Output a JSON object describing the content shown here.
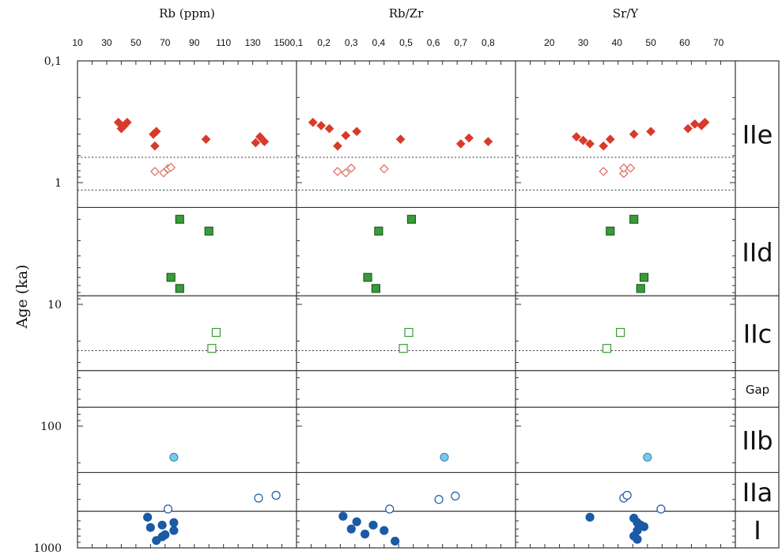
{
  "chart_data": {
    "type": "scatter",
    "y_title": "Age (ka)",
    "y_scale": "log",
    "y_reversed": true,
    "y_range": [
      0.1,
      1000
    ],
    "y_tick_labels": [
      "0,1",
      "1",
      "10",
      "100",
      "1000"
    ],
    "grid": false,
    "panels": [
      {
        "title": "Rb (ppm)",
        "x_range": [
          10,
          160
        ],
        "x_tick_labels": [
          "10",
          "30",
          "50",
          "70",
          "90",
          "110",
          "130",
          "150"
        ],
        "series": [
          {
            "marker": "diamond",
            "filled": true,
            "color": "#d93a2a",
            "points": [
              [
                38,
                0.32
              ],
              [
                40,
                0.36
              ],
              [
                42,
                0.34
              ],
              [
                44,
                0.32
              ],
              [
                62,
                0.4
              ],
              [
                64,
                0.38
              ],
              [
                63,
                0.5
              ],
              [
                98,
                0.44
              ],
              [
                132,
                0.47
              ],
              [
                135,
                0.42
              ],
              [
                138,
                0.46
              ]
            ]
          },
          {
            "marker": "diamond",
            "filled": false,
            "color": "#e06a5e",
            "points": [
              [
                63,
                0.81
              ],
              [
                69,
                0.83
              ],
              [
                72,
                0.77
              ],
              [
                74,
                0.75
              ]
            ]
          },
          {
            "marker": "square",
            "filled": true,
            "color": "#3b9a3b",
            "points": [
              [
                80,
                2.0
              ],
              [
                100,
                2.5
              ],
              [
                74,
                6.0
              ],
              [
                80,
                7.4
              ]
            ]
          },
          {
            "marker": "square",
            "filled": false,
            "color": "#3b9a3b",
            "points": [
              [
                105,
                17.0
              ],
              [
                102,
                23.0
              ]
            ]
          },
          {
            "marker": "circle",
            "filled": true,
            "color": "#7cc8ea",
            "points": [
              [
                76,
                180
              ]
            ]
          },
          {
            "marker": "circle",
            "filled": false,
            "color": "#1a5aa6",
            "points": [
              [
                72,
                480
              ],
              [
                134,
                390
              ],
              [
                146,
                370
              ]
            ]
          },
          {
            "marker": "circle",
            "filled": true,
            "color": "#1a5aa6",
            "points": [
              [
                58,
                560
              ],
              [
                60,
                680
              ],
              [
                68,
                650
              ],
              [
                76,
                620
              ],
              [
                76,
                720
              ],
              [
                68,
                810
              ],
              [
                70,
                780
              ],
              [
                64,
                870
              ]
            ]
          }
        ]
      },
      {
        "title": "Rb/Zr",
        "x_range": [
          0.1,
          0.9
        ],
        "x_tick_labels": [
          "0,1",
          "0,2",
          "0,3",
          "0,4",
          "0,5",
          "0,6",
          "0,7",
          "0,8"
        ],
        "series": [
          {
            "marker": "diamond",
            "filled": true,
            "color": "#d93a2a",
            "points": [
              [
                0.16,
                0.32
              ],
              [
                0.19,
                0.34
              ],
              [
                0.22,
                0.36
              ],
              [
                0.25,
                0.5
              ],
              [
                0.28,
                0.41
              ],
              [
                0.32,
                0.38
              ],
              [
                0.48,
                0.44
              ],
              [
                0.7,
                0.48
              ],
              [
                0.73,
                0.43
              ],
              [
                0.8,
                0.46
              ]
            ]
          },
          {
            "marker": "diamond",
            "filled": false,
            "color": "#e06a5e",
            "points": [
              [
                0.25,
                0.81
              ],
              [
                0.28,
                0.83
              ],
              [
                0.3,
                0.76
              ],
              [
                0.42,
                0.77
              ]
            ]
          },
          {
            "marker": "square",
            "filled": true,
            "color": "#3b9a3b",
            "points": [
              [
                0.52,
                2.0
              ],
              [
                0.4,
                2.5
              ],
              [
                0.36,
                6.0
              ],
              [
                0.39,
                7.4
              ]
            ]
          },
          {
            "marker": "square",
            "filled": false,
            "color": "#3b9a3b",
            "points": [
              [
                0.51,
                17.0
              ],
              [
                0.49,
                23.0
              ]
            ]
          },
          {
            "marker": "circle",
            "filled": true,
            "color": "#7cc8ea",
            "points": [
              [
                0.64,
                180
              ]
            ]
          },
          {
            "marker": "circle",
            "filled": false,
            "color": "#1a5aa6",
            "points": [
              [
                0.44,
                480
              ],
              [
                0.62,
                400
              ],
              [
                0.68,
                375
              ]
            ]
          },
          {
            "marker": "circle",
            "filled": true,
            "color": "#1a5aa6",
            "points": [
              [
                0.27,
                550
              ],
              [
                0.32,
                610
              ],
              [
                0.3,
                700
              ],
              [
                0.35,
                770
              ],
              [
                0.38,
                650
              ],
              [
                0.42,
                720
              ],
              [
                0.46,
                880
              ]
            ]
          }
        ]
      },
      {
        "title": "Sr/Y",
        "x_range": [
          10,
          75
        ],
        "x_tick_labels": [
          "20",
          "30",
          "40",
          "50",
          "60",
          "70"
        ],
        "series": [
          {
            "marker": "diamond",
            "filled": true,
            "color": "#d93a2a",
            "points": [
              [
                28,
                0.42
              ],
              [
                30,
                0.45
              ],
              [
                32,
                0.48
              ],
              [
                36,
                0.5
              ],
              [
                38,
                0.44
              ],
              [
                45,
                0.4
              ],
              [
                50,
                0.38
              ],
              [
                61,
                0.36
              ],
              [
                63,
                0.33
              ],
              [
                65,
                0.34
              ],
              [
                66,
                0.32
              ]
            ]
          },
          {
            "marker": "diamond",
            "filled": false,
            "color": "#e06a5e",
            "points": [
              [
                36,
                0.81
              ],
              [
                42,
                0.84
              ],
              [
                42,
                0.76
              ],
              [
                44,
                0.76
              ]
            ]
          },
          {
            "marker": "square",
            "filled": true,
            "color": "#3b9a3b",
            "points": [
              [
                45,
                2.0
              ],
              [
                38,
                2.5
              ],
              [
                48,
                6.0
              ],
              [
                47,
                7.4
              ]
            ]
          },
          {
            "marker": "square",
            "filled": false,
            "color": "#3b9a3b",
            "points": [
              [
                41,
                17.0
              ],
              [
                37,
                23.0
              ]
            ]
          },
          {
            "marker": "circle",
            "filled": true,
            "color": "#7cc8ea",
            "points": [
              [
                49,
                180
              ]
            ]
          },
          {
            "marker": "circle",
            "filled": false,
            "color": "#1a5aa6",
            "points": [
              [
                42,
                390
              ],
              [
                43,
                370
              ],
              [
                53,
                480
              ]
            ]
          },
          {
            "marker": "circle",
            "filled": true,
            "color": "#1a5aa6",
            "points": [
              [
                32,
                560
              ],
              [
                45,
                570
              ],
              [
                46,
                620
              ],
              [
                47,
                650
              ],
              [
                48,
                670
              ],
              [
                46,
                720
              ],
              [
                45,
                800
              ],
              [
                46,
                850
              ]
            ]
          }
        ]
      }
    ],
    "unit_labels": [
      "IIe",
      "IId",
      "IIc",
      "Gap",
      "IIb",
      "IIa",
      "I"
    ],
    "unit_boundaries_solid": [
      1.6,
      8.5,
      35,
      70,
      240,
      500
    ],
    "unit_boundaries_dotted": [
      0.62,
      1.15,
      24
    ]
  }
}
